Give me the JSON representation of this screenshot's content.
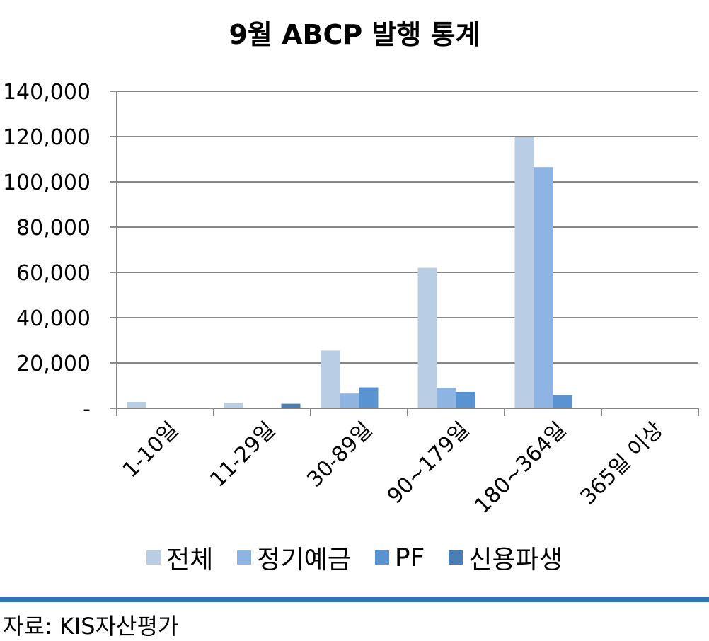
{
  "chart_data": {
    "type": "bar",
    "title": "9월 ABCP 발행 통계",
    "categories": [
      "1-10일",
      "11-29일",
      "30-89일",
      "90~179일",
      "180~364일",
      "365일 이상"
    ],
    "series": [
      {
        "name": "전체",
        "color": "#b9cde5",
        "values": [
          2800,
          2500,
          25500,
          62000,
          120000,
          0
        ]
      },
      {
        "name": "정기예금",
        "color": "#8eb4e3",
        "values": [
          0,
          0,
          6500,
          9000,
          106500,
          0
        ]
      },
      {
        "name": "PF",
        "color": "#5a93d1",
        "values": [
          0,
          0,
          9200,
          7200,
          5800,
          0
        ]
      },
      {
        "name": "신용파생",
        "color": "#4a7fb5",
        "values": [
          0,
          2000,
          0,
          0,
          0,
          0
        ]
      }
    ],
    "ylim": [
      0,
      140000
    ],
    "yticks": [
      0,
      20000,
      40000,
      60000,
      80000,
      100000,
      120000,
      140000
    ],
    "ytick_labels": [
      "-",
      "20,000",
      "40,000",
      "60,000",
      "80,000",
      "100,000",
      "120,000",
      "140,000"
    ],
    "xlabel": "",
    "ylabel": "",
    "grid": true,
    "legend_position": "bottom"
  },
  "footer": {
    "source": "자료: KIS자산평가"
  },
  "colors": {
    "divider": "#2e74b5",
    "grid": "#868686"
  }
}
